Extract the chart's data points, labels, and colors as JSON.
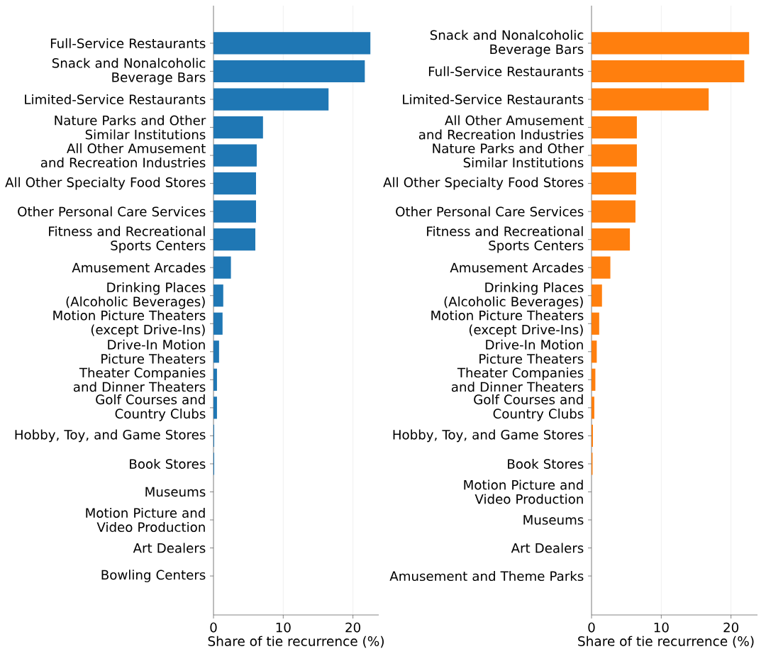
{
  "chart_data": [
    {
      "type": "bar",
      "orientation": "horizontal",
      "xlabel": "Share of tie recurrence (%)",
      "grid": "x",
      "categories": [
        "Full-Service Restaurants",
        "Snack and Nonalcoholic Beverage Bars",
        "Limited-Service Restaurants",
        "Nature Parks and Other Similar Institutions",
        "All Other Amusement and Recreation Industries",
        "All Other Specialty Food Stores",
        "Other Personal Care Services",
        "Fitness and Recreational Sports Centers",
        "Amusement Arcades",
        "Drinking Places (Alcoholic Beverages)",
        "Motion Picture Theaters (except Drive-Ins)",
        "Drive-In Motion Picture Theaters",
        "Theater Companies and Dinner Theaters",
        "Golf Courses and Country Clubs",
        "Hobby, Toy, and Game Stores",
        "Book Stores",
        "Museums",
        "Motion Picture and Video Production",
        "Art Dealers",
        "Bowling Centers"
      ],
      "series": [
        {
          "color": "#1f77b4",
          "values": [
            22.5,
            21.7,
            16.5,
            7.1,
            6.2,
            6.1,
            6.1,
            6.0,
            2.5,
            1.4,
            1.3,
            0.8,
            0.5,
            0.5,
            0.1,
            0.1,
            0,
            0,
            0,
            0
          ]
        }
      ],
      "xlim": [
        0,
        23.7
      ],
      "xticks": [
        0,
        10,
        20
      ]
    },
    {
      "type": "bar",
      "orientation": "horizontal",
      "xlabel": "Share of tie recurrence (%)",
      "grid": "x",
      "categories": [
        "Snack and Nonalcoholic Beverage Bars",
        "Full-Service Restaurants",
        "Limited-Service Restaurants",
        "All Other Amusement and Recreation Industries",
        "Nature Parks and Other Similar Institutions",
        "All Other Specialty Food Stores",
        "Other Personal Care Services",
        "Fitness and Recreational Sports Centers",
        "Amusement Arcades",
        "Drinking Places (Alcoholic Beverages)",
        "Motion Picture Theaters (except Drive-Ins)",
        "Drive-In Motion Picture Theaters",
        "Theater Companies and Dinner Theaters",
        "Golf Courses and Country Clubs",
        "Hobby, Toy, and Game Stores",
        "Book Stores",
        "Motion Picture and Video Production",
        "Museums",
        "Art Dealers",
        "Amusement and Theme Parks"
      ],
      "series": [
        {
          "color": "#ff7f0e",
          "values": [
            22.6,
            21.9,
            16.8,
            6.5,
            6.5,
            6.4,
            6.3,
            5.5,
            2.7,
            1.5,
            1.1,
            0.75,
            0.55,
            0.4,
            0.2,
            0.15,
            0,
            0,
            0,
            0
          ]
        }
      ],
      "xlim": [
        0,
        23.8
      ],
      "xticks": [
        0,
        10,
        20
      ]
    }
  ]
}
